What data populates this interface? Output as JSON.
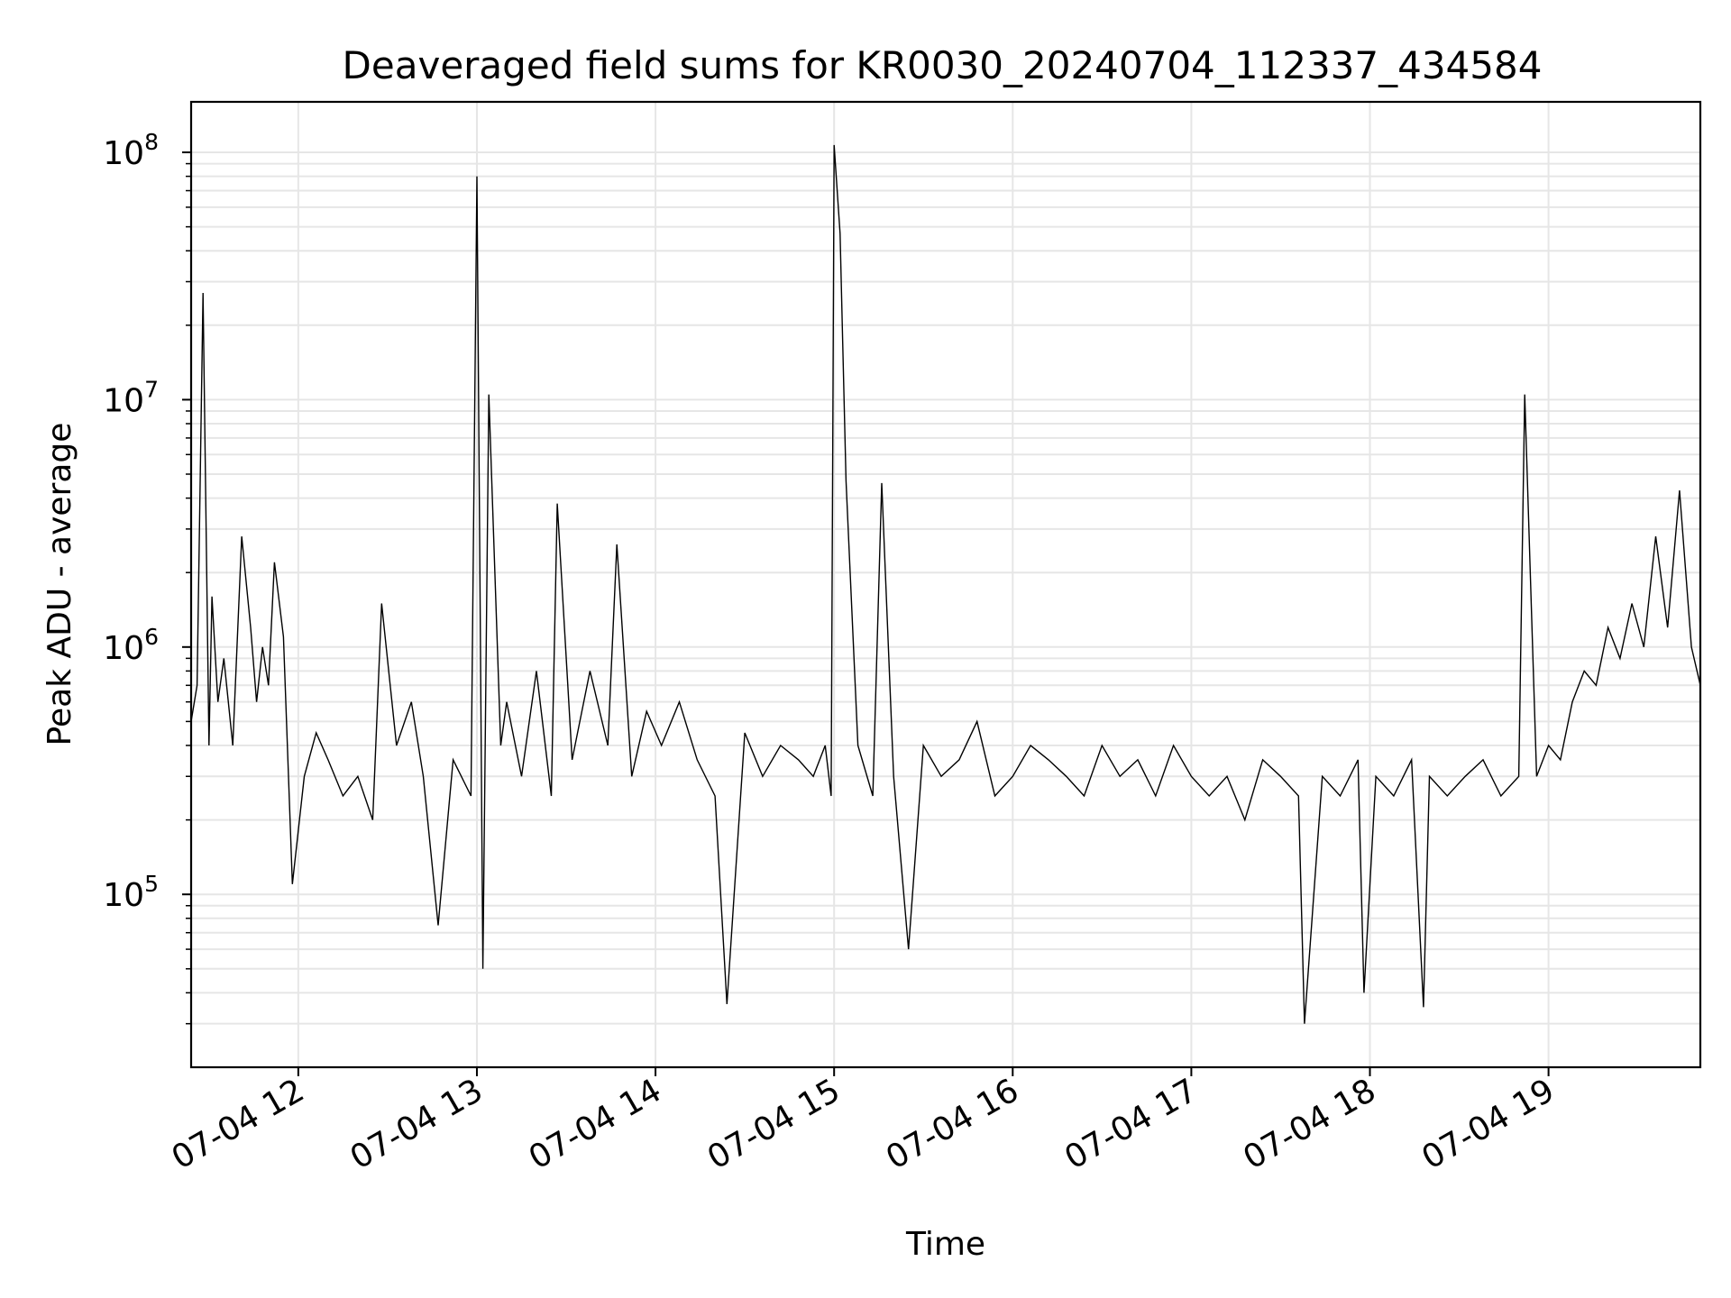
{
  "chart_data": {
    "type": "line",
    "title": "Deaveraged field sums for KR0030_20240704_112337_434584",
    "xlabel": "Time",
    "ylabel": "Peak ADU - average",
    "yscale": "log",
    "ylim": [
      20000,
      160000000
    ],
    "xlim": [
      "2024-07-04 11:24",
      "2024-07-04 19:51"
    ],
    "grid": true,
    "line_color": "#000000",
    "x_ticks": [
      {
        "value": "2024-07-04 12:00",
        "label": "07-04 12"
      },
      {
        "value": "2024-07-04 13:00",
        "label": "07-04 13"
      },
      {
        "value": "2024-07-04 14:00",
        "label": "07-04 14"
      },
      {
        "value": "2024-07-04 15:00",
        "label": "07-04 15"
      },
      {
        "value": "2024-07-04 16:00",
        "label": "07-04 16"
      },
      {
        "value": "2024-07-04 17:00",
        "label": "07-04 17"
      },
      {
        "value": "2024-07-04 18:00",
        "label": "07-04 18"
      },
      {
        "value": "2024-07-04 19:00",
        "label": "07-04 19"
      }
    ],
    "y_ticks": [
      {
        "value": 100000,
        "base": "10",
        "exp": "5"
      },
      {
        "value": 1000000,
        "base": "10",
        "exp": "6"
      },
      {
        "value": 10000000,
        "base": "10",
        "exp": "7"
      },
      {
        "value": 100000000,
        "base": "10",
        "exp": "8"
      }
    ],
    "series": [
      {
        "x": [
          "2024-07-04 11:24",
          "2024-07-04 11:26",
          "2024-07-04 11:28",
          "2024-07-04 11:30",
          "2024-07-04 11:31",
          "2024-07-04 11:33",
          "2024-07-04 11:35",
          "2024-07-04 11:38",
          "2024-07-04 11:41",
          "2024-07-04 11:44",
          "2024-07-04 11:46",
          "2024-07-04 11:48",
          "2024-07-04 11:50",
          "2024-07-04 11:52",
          "2024-07-04 11:55",
          "2024-07-04 11:58",
          "2024-07-04 12:02",
          "2024-07-04 12:06",
          "2024-07-04 12:10",
          "2024-07-04 12:15",
          "2024-07-04 12:20",
          "2024-07-04 12:25",
          "2024-07-04 12:28",
          "2024-07-04 12:33",
          "2024-07-04 12:38",
          "2024-07-04 12:42",
          "2024-07-04 12:47",
          "2024-07-04 12:52",
          "2024-07-04 12:58",
          "2024-07-04 13:00",
          "2024-07-04 13:02",
          "2024-07-04 13:04",
          "2024-07-04 13:08",
          "2024-07-04 13:10",
          "2024-07-04 13:15",
          "2024-07-04 13:20",
          "2024-07-04 13:25",
          "2024-07-04 13:27",
          "2024-07-04 13:32",
          "2024-07-04 13:38",
          "2024-07-04 13:44",
          "2024-07-04 13:47",
          "2024-07-04 13:52",
          "2024-07-04 13:57",
          "2024-07-04 14:02",
          "2024-07-04 14:08",
          "2024-07-04 14:14",
          "2024-07-04 14:20",
          "2024-07-04 14:24",
          "2024-07-04 14:30",
          "2024-07-04 14:36",
          "2024-07-04 14:42",
          "2024-07-04 14:48",
          "2024-07-04 14:53",
          "2024-07-04 14:57",
          "2024-07-04 14:59",
          "2024-07-04 15:00",
          "2024-07-04 15:02",
          "2024-07-04 15:04",
          "2024-07-04 15:08",
          "2024-07-04 15:13",
          "2024-07-04 15:16",
          "2024-07-04 15:20",
          "2024-07-04 15:25",
          "2024-07-04 15:30",
          "2024-07-04 15:36",
          "2024-07-04 15:42",
          "2024-07-04 15:48",
          "2024-07-04 15:54",
          "2024-07-04 16:00",
          "2024-07-04 16:06",
          "2024-07-04 16:12",
          "2024-07-04 16:18",
          "2024-07-04 16:24",
          "2024-07-04 16:30",
          "2024-07-04 16:36",
          "2024-07-04 16:42",
          "2024-07-04 16:48",
          "2024-07-04 16:54",
          "2024-07-04 17:00",
          "2024-07-04 17:06",
          "2024-07-04 17:12",
          "2024-07-04 17:18",
          "2024-07-04 17:24",
          "2024-07-04 17:30",
          "2024-07-04 17:36",
          "2024-07-04 17:38",
          "2024-07-04 17:44",
          "2024-07-04 17:50",
          "2024-07-04 17:56",
          "2024-07-04 17:58",
          "2024-07-04 18:02",
          "2024-07-04 18:08",
          "2024-07-04 18:14",
          "2024-07-04 18:18",
          "2024-07-04 18:20",
          "2024-07-04 18:26",
          "2024-07-04 18:32",
          "2024-07-04 18:38",
          "2024-07-04 18:44",
          "2024-07-04 18:50",
          "2024-07-04 18:52",
          "2024-07-04 18:56",
          "2024-07-04 19:00",
          "2024-07-04 19:04",
          "2024-07-04 19:08",
          "2024-07-04 19:12",
          "2024-07-04 19:16",
          "2024-07-04 19:20",
          "2024-07-04 19:24",
          "2024-07-04 19:28",
          "2024-07-04 19:32",
          "2024-07-04 19:36",
          "2024-07-04 19:40",
          "2024-07-04 19:44",
          "2024-07-04 19:48",
          "2024-07-04 19:51"
        ],
        "y": [
          500000,
          700000,
          27000000,
          400000,
          1600000,
          600000,
          900000,
          400000,
          2800000,
          1200000,
          600000,
          1000000,
          700000,
          2200000,
          1100000,
          110000,
          300000,
          450000,
          350000,
          250000,
          300000,
          200000,
          1500000,
          400000,
          600000,
          300000,
          75000,
          350000,
          250000,
          80000000,
          50000,
          10500000,
          400000,
          600000,
          300000,
          800000,
          250000,
          3800000,
          350000,
          800000,
          400000,
          2600000,
          300000,
          550000,
          400000,
          600000,
          350000,
          250000,
          36000,
          450000,
          300000,
          400000,
          350000,
          300000,
          400000,
          250000,
          107000000,
          47000000,
          4700000,
          400000,
          250000,
          4600000,
          300000,
          60000,
          400000,
          300000,
          350000,
          500000,
          250000,
          300000,
          400000,
          350000,
          300000,
          250000,
          400000,
          300000,
          350000,
          250000,
          400000,
          300000,
          250000,
          300000,
          200000,
          350000,
          300000,
          250000,
          30000,
          300000,
          250000,
          350000,
          40000,
          300000,
          250000,
          350000,
          35000,
          300000,
          250000,
          300000,
          350000,
          250000,
          300000,
          10500000,
          300000,
          400000,
          350000,
          600000,
          800000,
          700000,
          1200000,
          900000,
          1500000,
          1000000,
          2800000,
          1200000,
          4300000,
          1000000,
          700000
        ]
      }
    ]
  }
}
